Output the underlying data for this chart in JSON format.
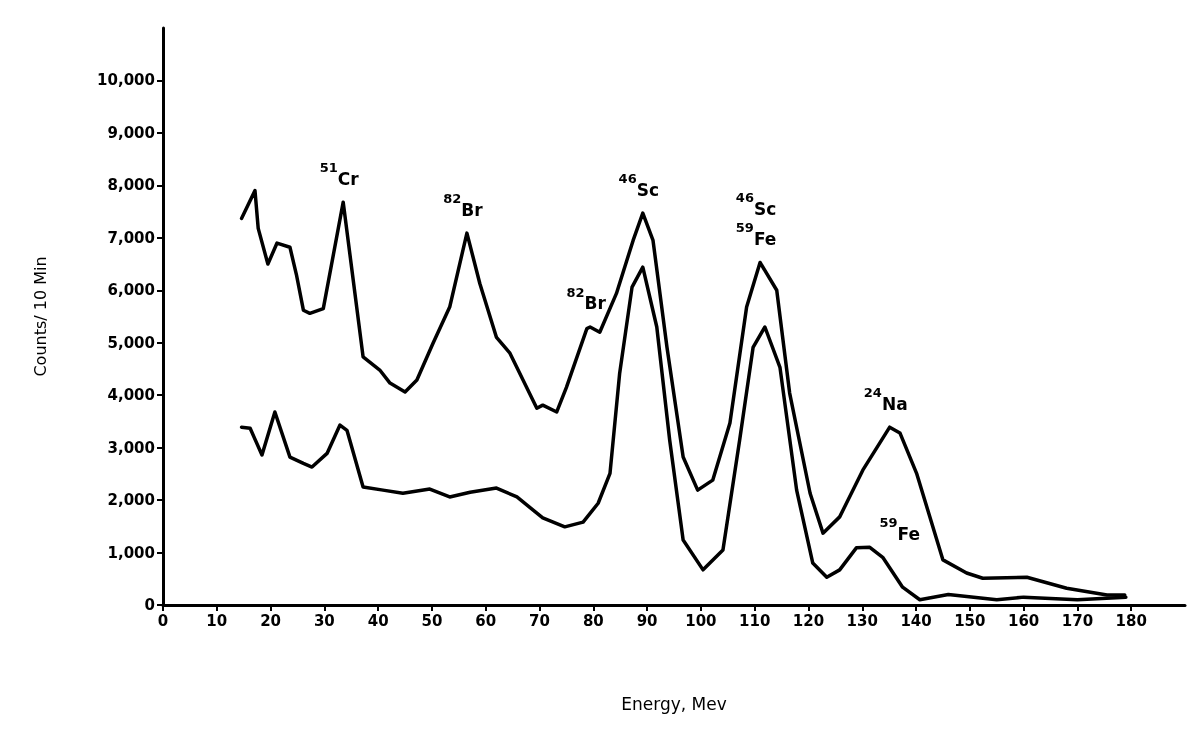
{
  "chart_data": {
    "type": "line",
    "xlabel": "Energy, Mev",
    "ylabel": "Counts/ 10 Min",
    "xlim": [
      0,
      190
    ],
    "xticks": [
      0,
      10,
      20,
      30,
      40,
      50,
      60,
      70,
      80,
      90,
      100,
      110,
      120,
      130,
      140,
      150,
      160,
      170,
      180
    ],
    "ylim": [
      0,
      11000
    ],
    "yticks": [
      0,
      {
        "value": 1000,
        "label": "1,000"
      },
      {
        "value": 2000,
        "label": "2,000"
      },
      {
        "value": 3000,
        "label": "3,000"
      },
      {
        "value": 4000,
        "label": "4,000"
      },
      {
        "value": 5000,
        "label": "5,000"
      },
      {
        "value": 6000,
        "label": "6,000"
      },
      {
        "value": 7000,
        "label": "7,000"
      },
      {
        "value": 8000,
        "label": "8,000"
      },
      {
        "value": 9000,
        "label": "9,000"
      },
      {
        "value": 10000,
        "label": "10,000"
      }
    ],
    "grid": false,
    "marker": "none",
    "line_style": "solid",
    "series": [
      {
        "color": "#000000",
        "x": [
          14.6,
          17.1,
          17.7,
          19.5,
          21.2,
          23.6,
          24.8,
          26.1,
          27.3,
          29.8,
          33.5,
          37.2,
          40.3,
          42.2,
          45,
          47.2,
          50.2,
          53.3,
          56.5,
          58.9,
          62,
          64.5,
          69.5,
          70.6,
          73.2,
          75,
          78.8,
          79.4,
          81.2,
          84.3,
          87.4,
          89.2,
          91.1,
          93.7,
          96.7,
          99.4,
          102.2,
          105.4,
          108.5,
          111,
          114.1,
          116.5,
          120.3,
          122.7,
          125.8,
          130.1,
          135.1,
          137,
          140.1,
          145,
          149.4,
          152.4,
          160.6,
          168,
          175.5,
          178.8
        ],
        "values": [
          7370,
          7900,
          7180,
          6500,
          6900,
          6820,
          6300,
          5620,
          5560,
          5650,
          7680,
          4730,
          4480,
          4230,
          4060,
          4290,
          4990,
          5680,
          7090,
          6130,
          5100,
          4800,
          3750,
          3810,
          3680,
          4150,
          5270,
          5300,
          5200,
          5940,
          6950,
          7470,
          6950,
          4910,
          2820,
          2190,
          2380,
          3470,
          5680,
          6530,
          6000,
          4040,
          2130,
          1370,
          1680,
          2570,
          3390,
          3280,
          2510,
          860,
          610,
          510,
          530,
          320,
          190,
          190
        ]
      },
      {
        "color": "#000000",
        "x": [
          14.6,
          16.2,
          18.4,
          20.8,
          23.6,
          26.1,
          27.7,
          30.5,
          32.9,
          34.2,
          37.2,
          40.9,
          44.6,
          49.6,
          53.3,
          57.1,
          62,
          65.8,
          70.6,
          74.7,
          78.1,
          80.9,
          83.1,
          84.9,
          87.2,
          89.2,
          91.8,
          94.2,
          96.7,
          100.4,
          104.1,
          107.2,
          109.7,
          111.9,
          114.7,
          117.8,
          120.8,
          123.4,
          125.8,
          128.9,
          131.4,
          133.8,
          137.5,
          140.7,
          146,
          155,
          160,
          170,
          179
        ],
        "values": [
          3390,
          3370,
          2860,
          3680,
          2820,
          2700,
          2630,
          2890,
          3430,
          3330,
          2250,
          2190,
          2130,
          2210,
          2060,
          2150,
          2230,
          2060,
          1660,
          1490,
          1580,
          1940,
          2510,
          4420,
          6060,
          6440,
          5300,
          3140,
          1240,
          670,
          1050,
          3140,
          4910,
          5300,
          4530,
          2190,
          800,
          530,
          670,
          1090,
          1100,
          910,
          340,
          100,
          200,
          100,
          150,
          100,
          150
        ]
      }
    ],
    "annotations": [
      {
        "text": "$^{51}$Cr",
        "x": 33.5,
        "y": 7680
      },
      {
        "text": "$^{82}$Br",
        "x": 56.5,
        "y": 7090
      },
      {
        "text": "$^{82}$Br",
        "x": 79.4,
        "y": 5300
      },
      {
        "text": "$^{46}$Sc",
        "x": 89.2,
        "y": 7470
      },
      {
        "text": "$^{46}$Sc",
        "x": 111,
        "y": 6530
      },
      {
        "text": "$^{59}$Fe",
        "x": 111,
        "y": 6530
      },
      {
        "text": "$^{24}$Na",
        "x": 135.1,
        "y": 3390
      },
      {
        "text": "$^{59}$Fe",
        "x": 131.4,
        "y": 1100
      }
    ]
  }
}
